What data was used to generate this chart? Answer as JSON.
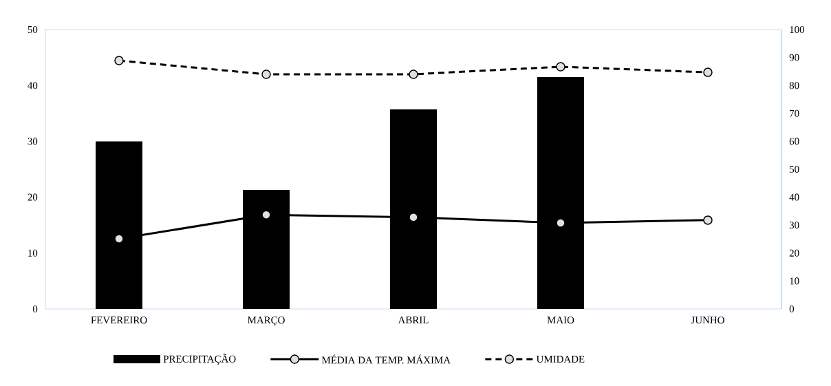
{
  "chart_data": {
    "type": "bar",
    "categories": [
      "FEVEREIRO",
      "MARÇO",
      "ABRIL",
      "MAIO",
      "JUNHO"
    ],
    "series": [
      {
        "name": "PRECIPITAÇÃO",
        "color": "#000000",
        "values": [
          30,
          21.3,
          35.7,
          41.5,
          null
        ]
      },
      {
        "name": "MÉDIA DA TEMP. MÁXIMA",
        "type": "line",
        "axis": "y2",
        "color": "#000000",
        "line_style": "solid",
        "marker": "circle",
        "values": [
          25.1,
          33.7,
          32.8,
          30.8,
          31.8
        ]
      },
      {
        "name": "UMIDADE",
        "type": "line",
        "axis": "y2",
        "color": "#000000",
        "line_style": "dashed",
        "marker": "circle",
        "values": [
          88.9,
          84.0,
          84.0,
          86.7,
          84.7
        ]
      }
    ],
    "ylim": [
      0,
      50
    ],
    "yticks": [
      0,
      10,
      20,
      30,
      40,
      50
    ],
    "y2lim": [
      0,
      100
    ],
    "y2ticks": [
      0,
      10,
      20,
      30,
      40,
      50,
      60,
      70,
      80,
      90,
      100
    ],
    "grid": false,
    "legend": "bottom"
  }
}
